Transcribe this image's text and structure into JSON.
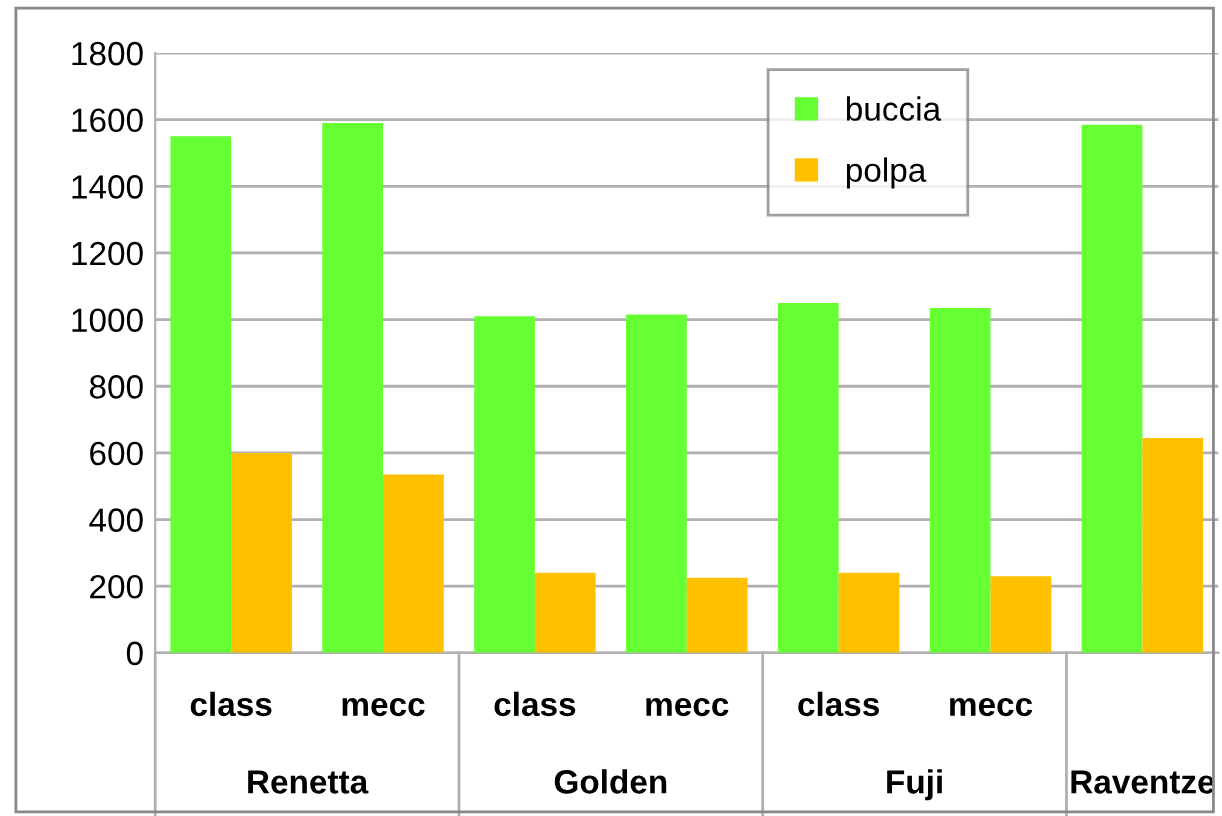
{
  "chart_data": {
    "type": "bar",
    "categories": [
      "class",
      "mecc",
      "class",
      "mecc",
      "class",
      "mecc",
      null
    ],
    "series": [
      {
        "name": "buccia",
        "color": "#66ff33",
        "values": [
          1550,
          1590,
          1010,
          1015,
          1050,
          1035,
          1585
        ]
      },
      {
        "name": "polpa",
        "color": "#ffc000",
        "values": [
          600,
          535,
          240,
          225,
          240,
          230,
          645
        ]
      }
    ],
    "annotations": [
      "Renetta",
      "Golden",
      "Fuji",
      "Raventze"
    ],
    "ylim": [
      0,
      1800
    ],
    "yticks": [
      0,
      200,
      400,
      600,
      800,
      1000,
      1200,
      1400,
      1600,
      1800
    ],
    "grid": "y",
    "legend": "top right"
  }
}
